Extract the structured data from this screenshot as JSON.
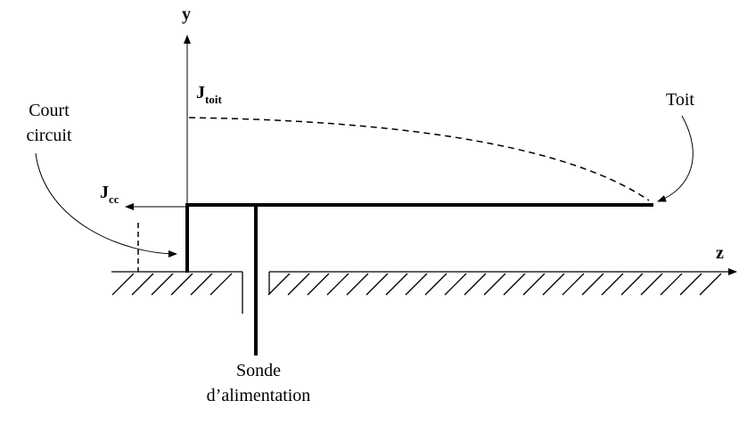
{
  "axes": {
    "y": "y",
    "z": "z"
  },
  "currents": {
    "roof": {
      "symbol": "J",
      "subscript": "toit"
    },
    "short_circuit": {
      "symbol": "J",
      "subscript": "cc"
    }
  },
  "labels": {
    "short_circuit": [
      "Court",
      "circuit"
    ],
    "roof": "Toit",
    "probe": [
      "Sonde",
      "d’alimentation"
    ]
  }
}
